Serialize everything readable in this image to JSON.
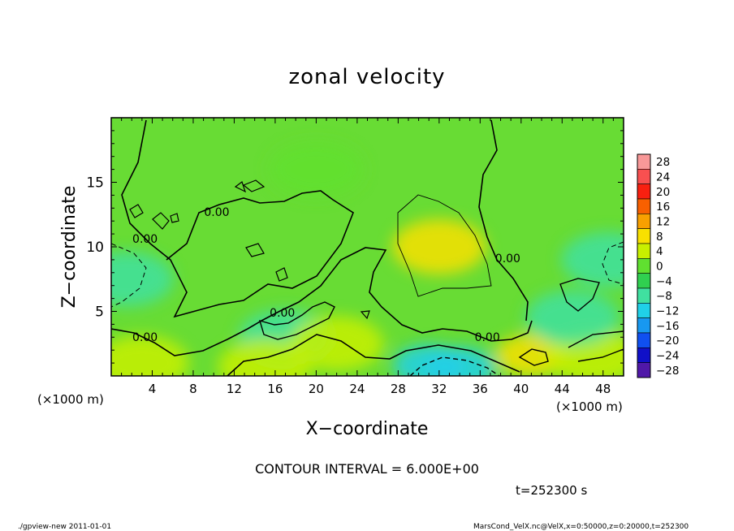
{
  "chart_data": {
    "type": "heatmap",
    "title": "zonal velocity",
    "xlabel": "X−coordinate",
    "ylabel": "Z−coordinate",
    "x_unit": "(×1000 m)",
    "y_unit": "(×1000 m)",
    "xlim": [
      0,
      50
    ],
    "ylim": [
      0,
      20
    ],
    "x_ticks": [
      "4",
      "8",
      "12",
      "16",
      "20",
      "24",
      "28",
      "32",
      "36",
      "40",
      "44",
      "48"
    ],
    "x_tick_values": [
      4,
      8,
      12,
      16,
      20,
      24,
      28,
      32,
      36,
      40,
      44,
      48
    ],
    "y_ticks": [
      "5",
      "10",
      "15"
    ],
    "y_tick_values": [
      5,
      10,
      15
    ],
    "contour_interval_text": "CONTOUR INTERVAL = 6.000E+00",
    "contour_labels": [
      {
        "text": "0.00",
        "x": 10.3,
        "z": 12.4
      },
      {
        "text": "0.00",
        "x": 3.3,
        "z": 10.3
      },
      {
        "text": "0.00",
        "x": 16.7,
        "z": 4.6
      },
      {
        "text": "0.00",
        "x": 3.3,
        "z": 2.7
      },
      {
        "text": "0.00",
        "x": 36.7,
        "z": 2.7
      },
      {
        "text": "0.00",
        "x": 38.7,
        "z": 8.8
      }
    ],
    "colorbar": {
      "labels": [
        "28",
        "24",
        "20",
        "16",
        "12",
        "8",
        "4",
        "0",
        "−4",
        "−8",
        "−12",
        "−16",
        "−20",
        "−24",
        "−28"
      ],
      "colors": [
        "#f89898",
        "#f85050",
        "#f82010",
        "#f86000",
        "#f8a000",
        "#f8e000",
        "#c8f000",
        "#60e030",
        "#30d050",
        "#40e0a0",
        "#20d0e8",
        "#1898f0",
        "#1050f0",
        "#1010c8",
        "#5018a8"
      ],
      "range": [
        -30,
        30
      ]
    },
    "field_samples": [
      {
        "x": 32,
        "z": 10,
        "u": 8
      },
      {
        "x": 34,
        "z": 0.6,
        "u": -12
      },
      {
        "x": 31,
        "z": 0.8,
        "u": -10
      },
      {
        "x": 1.5,
        "z": 7.5,
        "u": -8
      },
      {
        "x": 3,
        "z": 1,
        "u": 6
      },
      {
        "x": 41,
        "z": 1.6,
        "u": 10
      },
      {
        "x": 47,
        "z": 1.5,
        "u": 6
      },
      {
        "x": 45,
        "z": 4.5,
        "u": -8
      },
      {
        "x": 48.5,
        "z": 9,
        "u": -6
      },
      {
        "x": 17,
        "z": 3,
        "u": -6
      },
      {
        "x": 15,
        "z": 0.7,
        "u": 4
      },
      {
        "x": 22,
        "z": 2.5,
        "u": 4
      },
      {
        "x": 20,
        "z": 16,
        "u": 2
      }
    ]
  },
  "time_text": "t=252300 s",
  "footer": {
    "left": "./gpview-new   2011-01-01",
    "right": "MarsCond_VelX.nc@VelX,x=0:50000,z=0:20000,t=252300"
  }
}
